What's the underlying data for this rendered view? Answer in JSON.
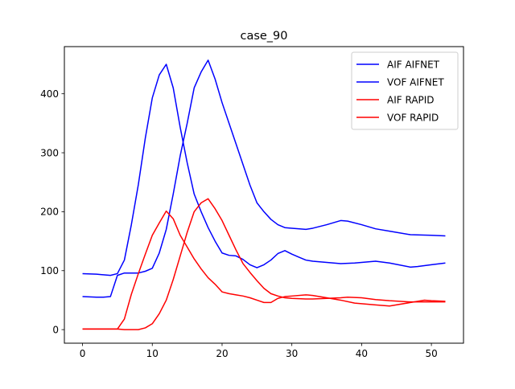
{
  "chart_data": {
    "type": "line",
    "title": "case_90",
    "xlabel": "",
    "ylabel": "",
    "xlim": [
      -2.6,
      54.6
    ],
    "ylim": [
      -23,
      480
    ],
    "x_ticks": [
      0,
      10,
      20,
      30,
      40,
      50
    ],
    "y_ticks": [
      0,
      100,
      200,
      300,
      400
    ],
    "grid": false,
    "legend_position": "top-right",
    "series": [
      {
        "name": "AIF AIFNET",
        "color": "#0000ff",
        "x": [
          0,
          2,
          4,
          5,
          6,
          7,
          8,
          9,
          10,
          11,
          12,
          13,
          14,
          15,
          16,
          17,
          18,
          19,
          20,
          21,
          22,
          23,
          24,
          25,
          26,
          27,
          28,
          29,
          30,
          31,
          32,
          33,
          35,
          37,
          39,
          42,
          44,
          47,
          48,
          50,
          52
        ],
        "y": [
          95,
          94,
          92,
          95,
          118,
          178,
          246,
          325,
          393,
          432,
          450,
          410,
          343,
          283,
          230,
          200,
          173,
          150,
          130,
          126,
          125,
          119,
          110,
          105,
          110,
          118,
          129,
          134,
          128,
          123,
          118,
          116,
          114,
          112,
          113,
          116,
          113,
          106,
          107,
          110,
          113
        ]
      },
      {
        "name": "VOF AIFNET",
        "color": "#0000ff",
        "x": [
          0,
          2,
          3,
          4,
          5,
          6,
          7,
          8,
          9,
          10,
          11,
          12,
          13,
          14,
          15,
          16,
          17,
          18,
          19,
          20,
          21,
          22,
          23,
          24,
          25,
          26,
          27,
          28,
          29,
          30,
          32,
          33,
          35,
          37,
          38,
          40,
          42,
          44,
          47,
          50,
          52
        ],
        "y": [
          56,
          55,
          55,
          56,
          92,
          96,
          96,
          96,
          99,
          104,
          130,
          170,
          230,
          295,
          350,
          410,
          437,
          457,
          425,
          385,
          350,
          315,
          280,
          245,
          215,
          200,
          187,
          178,
          173,
          172,
          170,
          172,
          178,
          185,
          184,
          178,
          171,
          167,
          161,
          160,
          159
        ]
      },
      {
        "name": "AIF RAPID",
        "color": "#ff0000",
        "x": [
          0,
          2,
          4,
          5,
          6,
          7,
          8,
          9,
          10,
          11,
          12,
          13,
          14,
          15,
          16,
          17,
          18,
          19,
          20,
          21,
          22,
          23,
          24,
          25,
          26,
          27,
          28,
          29,
          30,
          32,
          33,
          35,
          37,
          39,
          42,
          44,
          47,
          49,
          50,
          52
        ],
        "y": [
          1,
          1,
          1,
          1,
          18,
          60,
          95,
          128,
          160,
          181,
          201,
          188,
          160,
          140,
          120,
          103,
          88,
          77,
          64,
          61,
          59,
          57,
          54,
          50,
          46,
          46,
          53,
          56,
          57,
          59,
          58,
          54,
          50,
          45,
          42,
          40,
          46,
          50,
          49,
          48
        ]
      },
      {
        "name": "VOF RAPID",
        "color": "#ff0000",
        "x": [
          0,
          2,
          4,
          5,
          6,
          7,
          8,
          9,
          10,
          11,
          12,
          13,
          14,
          15,
          16,
          17,
          18,
          19,
          20,
          21,
          22,
          23,
          24,
          25,
          26,
          27,
          28,
          29,
          30,
          32,
          33,
          35,
          37,
          38,
          40,
          42,
          44,
          47,
          50,
          52
        ],
        "y": [
          1,
          1,
          1,
          1,
          0,
          0,
          0,
          3,
          10,
          27,
          50,
          85,
          125,
          165,
          200,
          215,
          222,
          205,
          185,
          160,
          135,
          112,
          97,
          83,
          70,
          61,
          57,
          54,
          53,
          52,
          52,
          53,
          54,
          55,
          54,
          51,
          49,
          47,
          47,
          47
        ]
      }
    ]
  }
}
